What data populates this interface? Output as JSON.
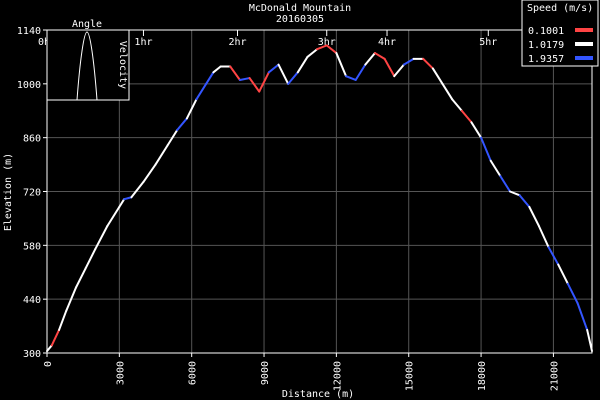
{
  "chart_data": {
    "type": "line",
    "title": "McDonald Mountain",
    "subtitle": "20160305",
    "xlabel": "Distance (m)",
    "ylabel": "Elevation (m)",
    "xlim": [
      0,
      22600
    ],
    "ylim": [
      300,
      1140
    ],
    "x_ticks": [
      0,
      3000,
      6000,
      9000,
      12000,
      15000,
      18000,
      21000
    ],
    "y_ticks": [
      300,
      440,
      580,
      720,
      860,
      1000,
      1140
    ],
    "grid": true,
    "time_markers": [
      {
        "label": "0hr",
        "x": 0
      },
      {
        "label": "1hr",
        "x": 4000
      },
      {
        "label": "2hr",
        "x": 7900
      },
      {
        "label": "3hr",
        "x": 11600
      },
      {
        "label": "4hr",
        "x": 14100
      },
      {
        "label": "5hr",
        "x": 18300
      }
    ],
    "legend": {
      "title": "Speed (m/s)",
      "placement": "top-right",
      "entries": [
        {
          "label": "0.1001",
          "color": "#ff4444"
        },
        {
          "label": "1.0179",
          "color": "#ffffff"
        },
        {
          "label": "1.9357",
          "color": "#3355ff"
        }
      ]
    },
    "series": [
      {
        "x": [
          0,
          200,
          500,
          800,
          1200,
          1600,
          2000,
          2500,
          3000,
          3200,
          3500,
          4000,
          4500,
          5000,
          5400,
          5800,
          6200,
          6600,
          6900,
          7200,
          7600,
          8000,
          8400,
          8800,
          9200,
          9600,
          10000,
          10400,
          10800,
          11200,
          11600,
          12000,
          12400,
          12800,
          13200,
          13600,
          14000,
          14400,
          14800,
          15200,
          15600,
          16000,
          16400,
          16800,
          17200,
          17600,
          18000,
          18400,
          18800,
          19200,
          19600,
          20000,
          20400,
          20800,
          21200,
          21600,
          22000,
          22400,
          22600
        ],
        "y": [
          305,
          320,
          360,
          410,
          470,
          520,
          570,
          630,
          680,
          700,
          705,
          745,
          790,
          840,
          880,
          910,
          960,
          1000,
          1030,
          1045,
          1045,
          1010,
          1015,
          980,
          1030,
          1050,
          1000,
          1030,
          1070,
          1090,
          1100,
          1080,
          1020,
          1010,
          1050,
          1080,
          1065,
          1020,
          1050,
          1065,
          1065,
          1040,
          1000,
          960,
          930,
          900,
          860,
          800,
          760,
          720,
          710,
          680,
          630,
          575,
          530,
          480,
          430,
          360,
          305
        ],
        "speed": [
          1.0,
          0.1,
          1.0,
          1.0,
          1.0,
          1.0,
          1.0,
          1.0,
          1.0,
          1.9,
          1.0,
          1.0,
          1.0,
          1.0,
          1.9,
          1.0,
          1.9,
          1.9,
          1.0,
          1.0,
          0.1,
          1.9,
          0.1,
          0.1,
          1.9,
          1.0,
          1.9,
          1.0,
          1.0,
          0.1,
          0.1,
          1.0,
          1.9,
          1.9,
          1.0,
          0.1,
          0.1,
          1.0,
          1.9,
          1.0,
          0.1,
          1.0,
          1.0,
          1.0,
          0.1,
          1.0,
          1.9,
          1.0,
          1.9,
          1.0,
          1.9,
          1.0,
          1.0,
          1.9,
          1.0,
          1.9,
          1.9,
          1.0,
          1.0
        ]
      }
    ],
    "inset": {
      "title": "Angle",
      "ylabel": "Velocity"
    }
  }
}
